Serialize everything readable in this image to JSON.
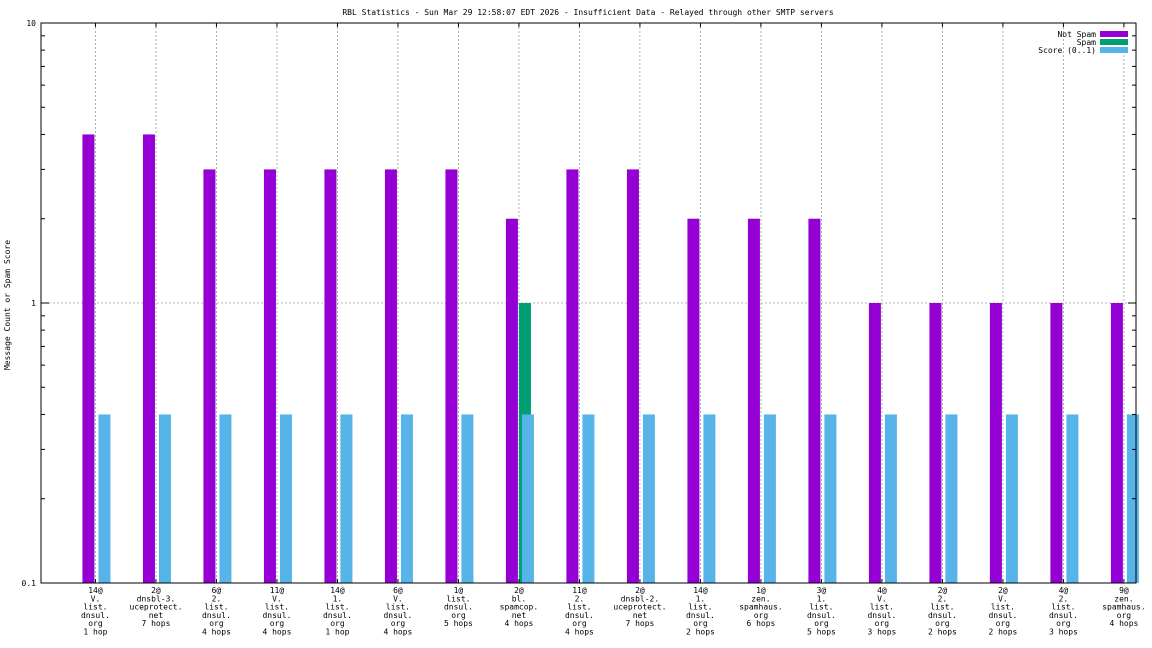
{
  "chart_data": {
    "type": "bar",
    "title": "RBL Statistics - Sun Mar 29 12:58:07 EDT 2026 - Insufficient Data - Relayed through other SMTP servers",
    "xlabel": "",
    "ylabel": "Message Count or Spam Score",
    "yscale": "log",
    "ylim": [
      0.1,
      10
    ],
    "yticks": [
      "0.1",
      "1",
      "10"
    ],
    "grid": true,
    "legend_position": "top-right",
    "categories": [
      [
        "14@",
        "V.",
        "list.",
        "dnsul.",
        "org",
        "1 hop"
      ],
      [
        "2@",
        "dnsbl-3.",
        "uceprotect.",
        "net",
        "7 hops"
      ],
      [
        "6@",
        "2.",
        "list.",
        "dnsul.",
        "org",
        "4 hops"
      ],
      [
        "11@",
        "V.",
        "list.",
        "dnsul.",
        "org",
        "4 hops"
      ],
      [
        "14@",
        "1.",
        "list.",
        "dnsul.",
        "org",
        "1 hop"
      ],
      [
        "6@",
        "V.",
        "list.",
        "dnsul.",
        "org",
        "4 hops"
      ],
      [
        "1@",
        "list.",
        "dnsul.",
        "org",
        "5 hops"
      ],
      [
        "2@",
        "bl.",
        "spamcop.",
        "net",
        "4 hops"
      ],
      [
        "11@",
        "2.",
        "list.",
        "dnsul.",
        "org",
        "4 hops"
      ],
      [
        "2@",
        "dnsbl-2.",
        "uceprotect.",
        "net",
        "7 hops"
      ],
      [
        "14@",
        "1.",
        "list.",
        "dnsul.",
        "org",
        "2 hops"
      ],
      [
        "1@",
        "zen.",
        "spamhaus.",
        "org",
        "6 hops"
      ],
      [
        "3@",
        "1.",
        "list.",
        "dnsul.",
        "org",
        "5 hops"
      ],
      [
        "4@",
        "V.",
        "list.",
        "dnsul.",
        "org",
        "3 hops"
      ],
      [
        "2@",
        "2.",
        "list.",
        "dnsul.",
        "org",
        "2 hops"
      ],
      [
        "2@",
        "V.",
        "list.",
        "dnsul.",
        "org",
        "2 hops"
      ],
      [
        "4@",
        "2.",
        "list.",
        "dnsul.",
        "org",
        "3 hops"
      ],
      [
        "9@",
        "zen.",
        "spamhaus.",
        "org",
        "4 hops"
      ]
    ],
    "series": [
      {
        "name": "Not Spam",
        "color": "#9400d3",
        "values": [
          4,
          4,
          3,
          3,
          3,
          3,
          3,
          2,
          3,
          3,
          2,
          2,
          2,
          1,
          1,
          1,
          1,
          1
        ]
      },
      {
        "name": "Spam",
        "color": "#009e73",
        "values": [
          0,
          0,
          0,
          0,
          0,
          0,
          0,
          1,
          0,
          0,
          0,
          0,
          0,
          0,
          0,
          0,
          0,
          0
        ]
      },
      {
        "name": "Score (0..1)",
        "color": "#56b4e9",
        "values": [
          0.4,
          0.4,
          0.4,
          0.4,
          0.4,
          0.4,
          0.4,
          0.4,
          0.4,
          0.4,
          0.4,
          0.4,
          0.4,
          0.4,
          0.4,
          0.4,
          0.4,
          0.4
        ]
      }
    ]
  }
}
